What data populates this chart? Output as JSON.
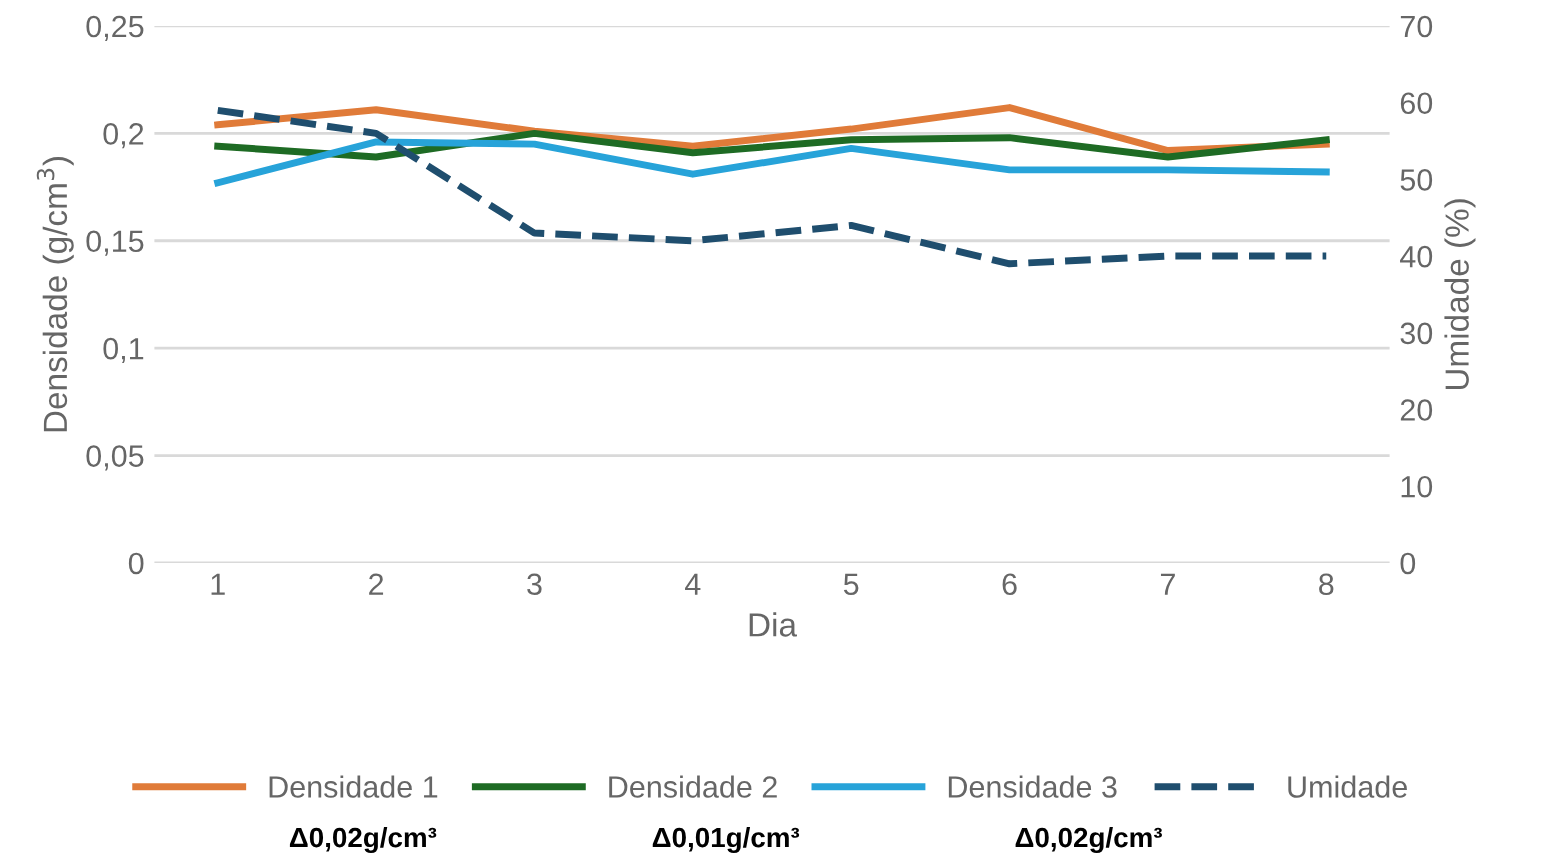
{
  "chart_data": {
    "type": "line",
    "xlabel": "Dia",
    "ylabel": "Densidade (g/cm$^{3}$)",
    "y2label": "Umidade (%)",
    "categories": [
      "1",
      "2",
      "3",
      "4",
      "5",
      "6",
      "7",
      "8"
    ],
    "series": [
      {
        "name": "Densidade 1",
        "color": "#e07b39",
        "values": [
          0.204,
          0.211,
          0.201,
          0.194,
          0.202,
          0.212,
          0.192,
          0.195
        ]
      },
      {
        "name": "Densidade 2",
        "color": "#1e6b24",
        "values": [
          0.194,
          0.189,
          0.2,
          0.191,
          0.197,
          0.198,
          0.189,
          0.197
        ]
      },
      {
        "name": "Densidade 3",
        "color": "#27a3d9",
        "values": [
          0.177,
          0.196,
          0.195,
          0.181,
          0.193,
          0.183,
          0.183,
          0.182
        ]
      },
      {
        "name": "Umidade",
        "color": "#1f4e6e",
        "axis": "y2",
        "line_style": "dashed",
        "values": [
          59,
          56,
          43,
          42,
          44,
          39,
          40,
          40
        ]
      }
    ],
    "ylim": [
      0,
      0.25
    ],
    "yticks": [
      {
        "value": 0,
        "label": "0"
      },
      {
        "value": 0.05,
        "label": "0,05"
      },
      {
        "value": 0.1,
        "label": "0,1"
      },
      {
        "value": 0.15,
        "label": "0,15"
      },
      {
        "value": 0.2,
        "label": "0,2"
      },
      {
        "value": 0.25,
        "label": "0,25"
      }
    ],
    "y2lim": [
      0,
      70
    ],
    "y2ticks": [
      0,
      10,
      20,
      30,
      40,
      50,
      60,
      70
    ],
    "grid": "y",
    "legend": "bottom",
    "annotations": [
      "Δ0,02g/cm³",
      "Δ0,01g/cm³",
      "Δ0,02g/cm³"
    ]
  }
}
